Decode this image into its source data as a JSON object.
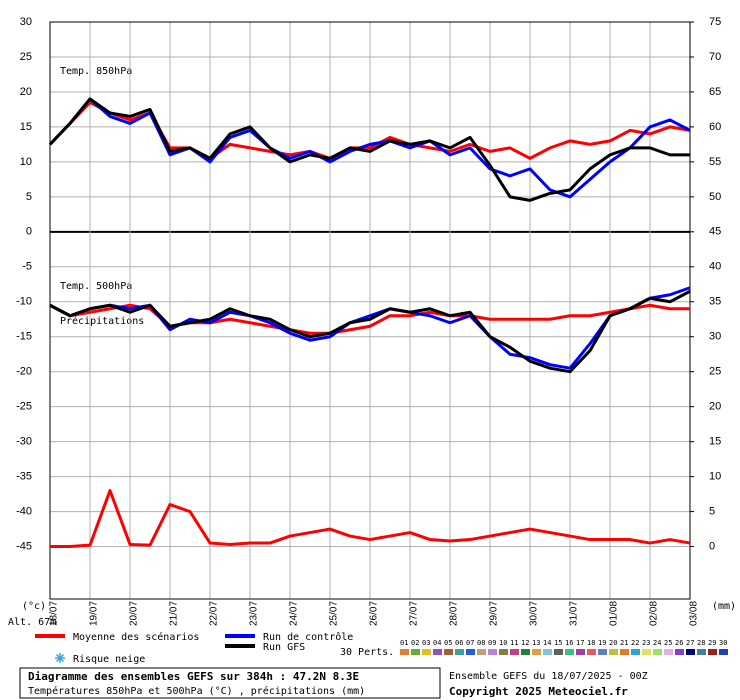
{
  "chart_data": {
    "type": "line",
    "title": "Diagramme des ensembles GEFS sur 384h : 47.2N 8.3E",
    "subtitle": "Températures 850hPa et 500hPa (°C) , précipitations (mm)",
    "run_label": "Ensemble GEFS du 18/07/2025 - 00Z",
    "copyright": "Copyright 2025 Meteociel.fr",
    "annotations": [
      "Temp. 850hPa",
      "Temp. 500hPa",
      "Précipitations"
    ],
    "ylabel": "(°c)",
    "y2label": "(mm)",
    "altitude": "Alt. 67m",
    "snow_label": "Risque neige",
    "perts_label": "30 Perts.",
    "perts": [
      {
        "label": "01",
        "color": "#e08030"
      },
      {
        "label": "02",
        "color": "#60b040"
      },
      {
        "label": "03",
        "color": "#e0c020"
      },
      {
        "label": "04",
        "color": "#9050c0"
      },
      {
        "label": "05",
        "color": "#a06030"
      },
      {
        "label": "06",
        "color": "#40a0a0"
      },
      {
        "label": "07",
        "color": "#2060e0"
      },
      {
        "label": "08",
        "color": "#c0a070"
      },
      {
        "label": "09",
        "color": "#c080e0"
      },
      {
        "label": "10",
        "color": "#808040"
      },
      {
        "label": "11",
        "color": "#c04080"
      },
      {
        "label": "12",
        "color": "#208040"
      },
      {
        "label": "13",
        "color": "#e0a040"
      },
      {
        "label": "14",
        "color": "#80c0e0"
      },
      {
        "label": "15",
        "color": "#606060"
      },
      {
        "label": "16",
        "color": "#40c080"
      },
      {
        "label": "17",
        "color": "#a040a0"
      },
      {
        "label": "18",
        "color": "#e06060"
      },
      {
        "label": "19",
        "color": "#6080c0"
      },
      {
        "label": "20",
        "color": "#c0c040"
      },
      {
        "label": "21",
        "color": "#e07a30"
      },
      {
        "label": "22",
        "color": "#30a0e0"
      },
      {
        "label": "23",
        "color": "#e0e060"
      },
      {
        "label": "24",
        "color": "#a0e060"
      },
      {
        "label": "25",
        "color": "#e0b0e0"
      },
      {
        "label": "26",
        "color": "#8040e0"
      },
      {
        "label": "27",
        "color": "#000080"
      },
      {
        "label": "28",
        "color": "#4080a0"
      },
      {
        "label": "29",
        "color": "#a02020"
      },
      {
        "label": "30",
        "color": "#2040c0"
      }
    ],
    "x": [
      0,
      0.5,
      1,
      1.5,
      2,
      2.5,
      3,
      3.5,
      4,
      4.5,
      5,
      5.5,
      6,
      6.5,
      7,
      7.5,
      8,
      8.5,
      9,
      9.5,
      10,
      10.5,
      11,
      11.5,
      12,
      12.5,
      13,
      13.5,
      14,
      14.5,
      15,
      15.5,
      16
    ],
    "xlim": [
      0,
      16
    ],
    "xticks": [
      {
        "value": 0,
        "label": "18/07"
      },
      {
        "value": 1,
        "label": "19/07"
      },
      {
        "value": 2,
        "label": "20/07"
      },
      {
        "value": 3,
        "label": "21/07"
      },
      {
        "value": 4,
        "label": "22/07"
      },
      {
        "value": 5,
        "label": "23/07"
      },
      {
        "value": 6,
        "label": "24/07"
      },
      {
        "value": 7,
        "label": "25/07"
      },
      {
        "value": 8,
        "label": "26/07"
      },
      {
        "value": 9,
        "label": "27/07"
      },
      {
        "value": 10,
        "label": "28/07"
      },
      {
        "value": 11,
        "label": "29/07"
      },
      {
        "value": 12,
        "label": "30/07"
      },
      {
        "value": 13,
        "label": "31/07"
      },
      {
        "value": 14,
        "label": "01/08"
      },
      {
        "value": 15,
        "label": "02/08"
      },
      {
        "value": 16,
        "label": "03/08"
      }
    ],
    "ylim": [
      -52.5,
      30
    ],
    "yticks": [
      30,
      25,
      20,
      15,
      10,
      5,
      0,
      -5,
      -10,
      -15,
      -20,
      -25,
      -30,
      -35,
      -40,
      -45
    ],
    "y2lim": [
      -7.5,
      75
    ],
    "y2ticks": [
      75,
      70,
      65,
      60,
      55,
      50,
      45,
      40,
      35,
      30,
      25,
      20,
      15,
      10,
      5,
      0
    ],
    "grid": true,
    "series": [
      {
        "name": "Moyenne des scénarios",
        "color": "#ff0000",
        "t850": [
          12.5,
          15.5,
          18.5,
          17,
          16,
          17,
          12,
          12,
          10.5,
          12.5,
          12,
          11.5,
          11,
          11.5,
          10.5,
          12,
          12,
          13.5,
          12.5,
          12,
          11.5,
          12.5,
          11.5,
          12,
          10.5,
          12,
          13,
          12.5,
          13,
          14.5,
          14,
          15,
          14.5
        ],
        "t500": [
          -10.5,
          -12,
          -11.5,
          -11,
          -10.5,
          -11,
          -13.5,
          -13,
          -13,
          -12.5,
          -13,
          -13.5,
          -14,
          -14.5,
          -14.5,
          -14,
          -13.5,
          -12,
          -12,
          -11.5,
          -12,
          -12,
          -12.5,
          -12.5,
          -12.5,
          -12.5,
          -12,
          -12,
          -11.5,
          -11,
          -10.5,
          -11,
          -11
        ],
        "precip": [
          0,
          0,
          0.2,
          8,
          0.3,
          0.2,
          6,
          5,
          0.5,
          0.3,
          0.5,
          0.5,
          1.5,
          2,
          2.5,
          1.5,
          1,
          1.5,
          2,
          1,
          0.8,
          1,
          1.5,
          2,
          2.5,
          2,
          1.5,
          1,
          1,
          1,
          0.5,
          1,
          0.5
        ]
      },
      {
        "name": "Run de contrôle",
        "color": "#0000ff",
        "t850": [
          12.5,
          15.5,
          19,
          16.5,
          15.5,
          17,
          11,
          12,
          10,
          13.5,
          14.5,
          12,
          10.5,
          11.5,
          10,
          11.5,
          12.5,
          13,
          12,
          13,
          11,
          12,
          9,
          8,
          9,
          6,
          5,
          7.5,
          10,
          12,
          15,
          16,
          14.5
        ],
        "t500": [
          -10.5,
          -12,
          -11,
          -10.5,
          -11,
          -10.5,
          -14,
          -12.5,
          -13,
          -11.5,
          -12,
          -13,
          -14.5,
          -15.5,
          -15,
          -13,
          -12,
          -11,
          -11.5,
          -12,
          -13,
          -12,
          -15,
          -17.5,
          -18,
          -19,
          -19.5,
          -16,
          -12,
          -11,
          -9.5,
          -9,
          -8
        ]
      },
      {
        "name": "Run GFS",
        "color": "#000000",
        "t850": [
          12.5,
          15.5,
          19,
          17,
          16.5,
          17.5,
          11.5,
          12,
          10.5,
          14,
          15,
          12,
          10,
          11,
          10.5,
          12,
          11.5,
          13,
          12.5,
          13,
          12,
          13.5,
          9.5,
          5,
          4.5,
          5.5,
          6,
          9,
          11,
          12,
          12,
          11,
          11
        ],
        "t500": [
          -10.5,
          -12,
          -11,
          -10.5,
          -11.5,
          -10.5,
          -13.5,
          -13,
          -12.5,
          -11,
          -12,
          -12.5,
          -14,
          -15,
          -14.5,
          -13,
          -12.5,
          -11,
          -11.5,
          -11,
          -12,
          -11.5,
          -15,
          -16.5,
          -18.5,
          -19.5,
          -20,
          -17,
          -12,
          -11,
          -9.5,
          -10,
          -8.5
        ]
      }
    ]
  }
}
